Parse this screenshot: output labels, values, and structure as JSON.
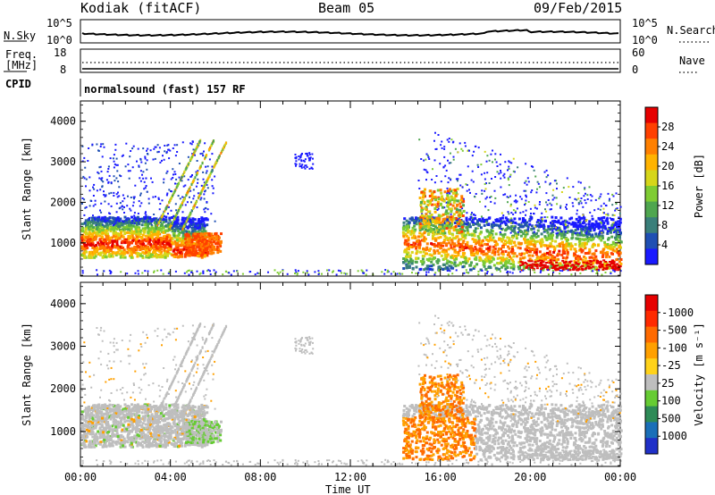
{
  "header": {
    "station": "Kodiak (fitACF)",
    "beam": "Beam 05",
    "date": "09/Feb/2015"
  },
  "colors": {
    "power": [
      "#1a1aff",
      "#1f4fb3",
      "#3a7f7a",
      "#4fa64f",
      "#7fcc33",
      "#d6d61a",
      "#ffb300",
      "#ff8000",
      "#ff4000",
      "#e60000"
    ],
    "velocity": [
      "#2030c8",
      "#1a6fb8",
      "#2e8b57",
      "#66cc33",
      "#bebebe",
      "#ffd21a",
      "#ffa000",
      "#ff6a00",
      "#ff2a00",
      "#e60000"
    ]
  },
  "panels": {
    "noise": {
      "left_label": "N.Sky",
      "right_label": "N.Search",
      "left_ticks": [
        "10^5",
        "10^0"
      ],
      "right_ticks": [
        "10^5",
        "10^0"
      ],
      "right_legend_style": "dotted"
    },
    "freq": {
      "left_label_1": "Freq.",
      "left_label_2": "[MHz]",
      "right_label": "Nave",
      "left_ticks": [
        "18",
        "8"
      ],
      "right_ticks": [
        "60",
        "0"
      ],
      "right_legend_style": "dotted"
    },
    "cpid": {
      "label": "CPID",
      "text": "normalsound (fast) 157 RF"
    }
  },
  "chart_data": [
    {
      "type": "heatmap",
      "name": "power",
      "xlabel": "",
      "ylabel": "Slant Range [km]",
      "xlim": [
        "00:00",
        "24:00"
      ],
      "ylim": [
        180,
        4500
      ],
      "yticks": [
        "1000",
        "2000",
        "3000",
        "4000"
      ],
      "colorbar": {
        "label": "Power [dB]",
        "ticks": [
          "4",
          "8",
          "12",
          "16",
          "20",
          "24",
          "28"
        ],
        "range": [
          0,
          30
        ]
      },
      "regions": [
        {
          "t_start": 0.0,
          "t_end": 7.0,
          "range_km": [
            200,
            3500
          ],
          "dominant_db": [
            4,
            28
          ]
        },
        {
          "t_start": 9.5,
          "t_end": 10.3,
          "range_km": [
            2800,
            3200
          ],
          "dominant_db": [
            4,
            8
          ]
        },
        {
          "t_start": 12.0,
          "t_end": 12.3,
          "range_km": [
            3400,
            3600
          ],
          "dominant_db": [
            4,
            8
          ]
        },
        {
          "t_start": 14.3,
          "t_end": 24.0,
          "range_km": [
            300,
            3500
          ],
          "dominant_db": [
            4,
            28
          ]
        }
      ]
    },
    {
      "type": "heatmap",
      "name": "velocity",
      "xlabel": "Time UT",
      "ylabel": "Slant Range [km]",
      "xlim": [
        "00:00",
        "24:00"
      ],
      "ylim": [
        180,
        4500
      ],
      "xticks": [
        "00:00",
        "04:00",
        "08:00",
        "12:00",
        "16:00",
        "20:00",
        "00:00"
      ],
      "yticks": [
        "1000",
        "2000",
        "3000",
        "4000"
      ],
      "colorbar": {
        "label": "Velocity [m s⁻¹]",
        "ticks": [
          "1000",
          "500",
          "100",
          "25",
          "-25",
          "-100",
          "-500",
          "-1000"
        ],
        "range": [
          -1000,
          1000
        ]
      },
      "regions": [
        {
          "t_start": 0.0,
          "t_end": 7.0,
          "range_km": [
            200,
            3500
          ],
          "dominant_ms": [
            -25,
            25
          ]
        },
        {
          "t_start": 14.5,
          "t_end": 17.5,
          "range_km": [
            400,
            2700
          ],
          "dominant_ms": [
            -500,
            -100
          ]
        },
        {
          "t_start": 17.0,
          "t_end": 24.0,
          "range_km": [
            300,
            3500
          ],
          "dominant_ms": [
            -25,
            25
          ]
        }
      ]
    }
  ]
}
